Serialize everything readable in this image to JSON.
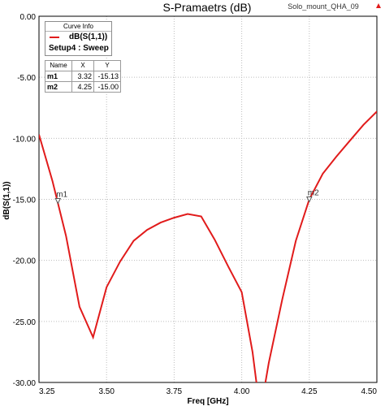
{
  "reference": {
    "name": "Solo_mount_QHA_09",
    "icon": "red-triangle-icon"
  },
  "curve_info": {
    "header": "Curve Info",
    "trace_label": "dB(S(1,1))",
    "setup_label": "Setup4 : Sweep",
    "trace_color": "#e11b1b"
  },
  "marker_table": {
    "headers": [
      "Name",
      "X",
      "Y"
    ],
    "rows": [
      [
        "m1",
        "3.32",
        "-15.13"
      ],
      [
        "m2",
        "4.25",
        "-15.00"
      ]
    ]
  },
  "chart_data": {
    "type": "line",
    "title": "S-Pramaetrs (dB)",
    "xlabel": "Freq [GHz]",
    "ylabel": "dB(S(1,1))",
    "xlim": [
      3.25,
      4.5
    ],
    "ylim": [
      -30.0,
      0.0
    ],
    "x_ticks": [
      "3.25",
      "3.50",
      "3.75",
      "4.00",
      "4.25",
      "4.50"
    ],
    "y_ticks": [
      "0.00",
      "-5.00",
      "-10.00",
      "-15.00",
      "-20.00",
      "-25.00",
      "-30.00"
    ],
    "grid": true,
    "series": [
      {
        "name": "dB(S(1,1))",
        "color": "#e11b1b",
        "x": [
          3.25,
          3.3,
          3.35,
          3.4,
          3.45,
          3.5,
          3.55,
          3.6,
          3.65,
          3.7,
          3.75,
          3.8,
          3.85,
          3.9,
          3.95,
          4.0,
          4.04,
          4.06,
          4.08,
          4.1,
          4.15,
          4.2,
          4.25,
          4.3,
          4.35,
          4.4,
          4.45,
          4.5
        ],
        "y": [
          -9.7,
          -13.5,
          -18.0,
          -23.8,
          -26.3,
          -22.2,
          -20.1,
          -18.4,
          -17.5,
          -16.9,
          -16.5,
          -16.2,
          -16.4,
          -18.3,
          -20.5,
          -22.6,
          -27.5,
          -31.0,
          -31.0,
          -28.4,
          -23.2,
          -18.4,
          -15.0,
          -12.9,
          -11.5,
          -10.2,
          -8.9,
          -7.8
        ]
      }
    ],
    "markers": [
      {
        "name": "m1",
        "x": 3.32,
        "y": -15.13
      },
      {
        "name": "m2",
        "x": 4.25,
        "y": -15.0
      }
    ]
  }
}
